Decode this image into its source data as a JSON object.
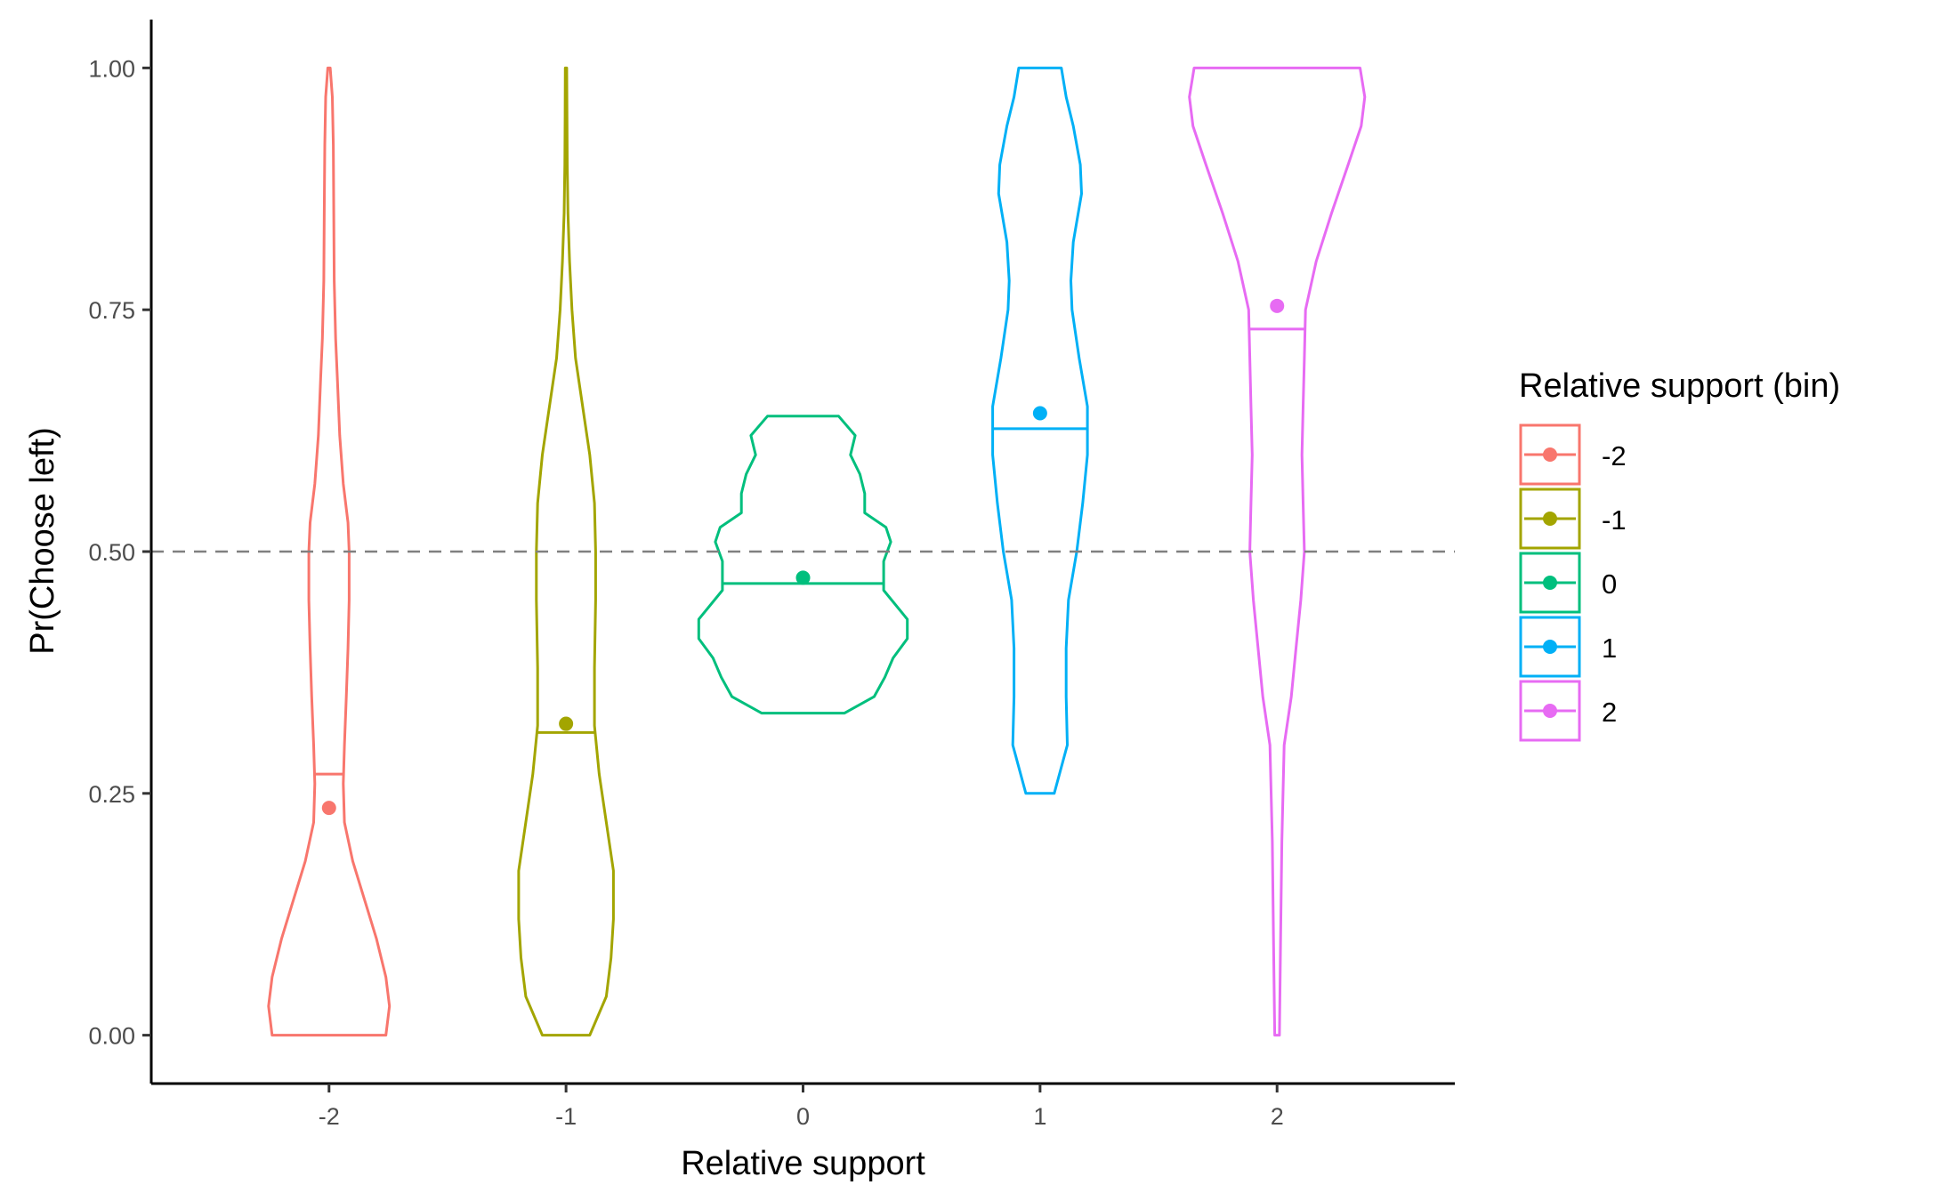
{
  "chart_data": {
    "type": "violin",
    "xlabel": "Relative support",
    "ylabel": "Pr(Choose left)",
    "x_ticks": [
      "-2",
      "-1",
      "0",
      "1",
      "2"
    ],
    "y_ticks": [
      "0.00",
      "0.25",
      "0.50",
      "0.75",
      "1.00"
    ],
    "xlim": [
      -2.75,
      2.75
    ],
    "ylim": [
      -0.05,
      1.05
    ],
    "reference_line": {
      "y": 0.5,
      "style": "dashed",
      "color": "#808080"
    },
    "grid": false,
    "legend": {
      "title": "Relative support (bin)",
      "position": "right",
      "entries": [
        "-2",
        "-1",
        "0",
        "1",
        "2"
      ]
    },
    "series": [
      {
        "name": "-2",
        "x": -2,
        "color": "#F8766D",
        "mean": 0.235,
        "median": 0.27,
        "profile": [
          [
            0.0,
            0.24
          ],
          [
            0.03,
            0.255
          ],
          [
            0.06,
            0.24
          ],
          [
            0.1,
            0.2
          ],
          [
            0.14,
            0.15
          ],
          [
            0.18,
            0.1
          ],
          [
            0.22,
            0.065
          ],
          [
            0.26,
            0.06
          ],
          [
            0.3,
            0.065
          ],
          [
            0.35,
            0.073
          ],
          [
            0.4,
            0.08
          ],
          [
            0.45,
            0.085
          ],
          [
            0.5,
            0.085
          ],
          [
            0.53,
            0.08
          ],
          [
            0.57,
            0.06
          ],
          [
            0.62,
            0.045
          ],
          [
            0.68,
            0.035
          ],
          [
            0.72,
            0.028
          ],
          [
            0.78,
            0.022
          ],
          [
            0.85,
            0.02
          ],
          [
            0.92,
            0.018
          ],
          [
            0.97,
            0.014
          ],
          [
            1.0,
            0.005
          ]
        ]
      },
      {
        "name": "-1",
        "x": -1,
        "color": "#A3A500",
        "mean": 0.322,
        "median": 0.313,
        "profile": [
          [
            0.0,
            0.1
          ],
          [
            0.04,
            0.17
          ],
          [
            0.08,
            0.19
          ],
          [
            0.12,
            0.2
          ],
          [
            0.17,
            0.2
          ],
          [
            0.22,
            0.17
          ],
          [
            0.27,
            0.14
          ],
          [
            0.32,
            0.12
          ],
          [
            0.38,
            0.12
          ],
          [
            0.45,
            0.125
          ],
          [
            0.5,
            0.125
          ],
          [
            0.55,
            0.12
          ],
          [
            0.6,
            0.1
          ],
          [
            0.65,
            0.07
          ],
          [
            0.7,
            0.04
          ],
          [
            0.75,
            0.025
          ],
          [
            0.8,
            0.015
          ],
          [
            0.85,
            0.008
          ],
          [
            0.9,
            0.005
          ],
          [
            0.95,
            0.004
          ],
          [
            1.0,
            0.003
          ]
        ]
      },
      {
        "name": "0",
        "x": 0,
        "color": "#00BF7D",
        "mean": 0.473,
        "median": 0.467,
        "profile": [
          [
            0.333,
            0.175
          ],
          [
            0.35,
            0.3
          ],
          [
            0.37,
            0.345
          ],
          [
            0.39,
            0.38
          ],
          [
            0.41,
            0.44
          ],
          [
            0.43,
            0.44
          ],
          [
            0.46,
            0.34
          ],
          [
            0.49,
            0.34
          ],
          [
            0.51,
            0.37
          ],
          [
            0.525,
            0.35
          ],
          [
            0.54,
            0.26
          ],
          [
            0.56,
            0.26
          ],
          [
            0.58,
            0.24
          ],
          [
            0.6,
            0.2
          ],
          [
            0.62,
            0.22
          ],
          [
            0.64,
            0.15
          ]
        ]
      },
      {
        "name": "1",
        "x": 1,
        "color": "#00B0F6",
        "mean": 0.643,
        "median": 0.627,
        "profile": [
          [
            0.25,
            0.06
          ],
          [
            0.3,
            0.115
          ],
          [
            0.35,
            0.11
          ],
          [
            0.4,
            0.11
          ],
          [
            0.45,
            0.12
          ],
          [
            0.5,
            0.155
          ],
          [
            0.55,
            0.18
          ],
          [
            0.6,
            0.2
          ],
          [
            0.65,
            0.2
          ],
          [
            0.7,
            0.165
          ],
          [
            0.75,
            0.135
          ],
          [
            0.78,
            0.13
          ],
          [
            0.82,
            0.14
          ],
          [
            0.87,
            0.175
          ],
          [
            0.9,
            0.17
          ],
          [
            0.94,
            0.14
          ],
          [
            0.97,
            0.11
          ],
          [
            1.0,
            0.09
          ]
        ]
      },
      {
        "name": "2",
        "x": 2,
        "color": "#E76BF3",
        "mean": 0.754,
        "median": 0.73,
        "profile": [
          [
            0.0,
            0.01
          ],
          [
            0.1,
            0.015
          ],
          [
            0.2,
            0.02
          ],
          [
            0.3,
            0.03
          ],
          [
            0.35,
            0.06
          ],
          [
            0.4,
            0.08
          ],
          [
            0.45,
            0.1
          ],
          [
            0.5,
            0.115
          ],
          [
            0.55,
            0.11
          ],
          [
            0.6,
            0.105
          ],
          [
            0.65,
            0.11
          ],
          [
            0.7,
            0.115
          ],
          [
            0.75,
            0.12
          ],
          [
            0.8,
            0.165
          ],
          [
            0.85,
            0.23
          ],
          [
            0.9,
            0.3
          ],
          [
            0.94,
            0.355
          ],
          [
            0.97,
            0.37
          ],
          [
            1.0,
            0.35
          ]
        ]
      }
    ]
  }
}
